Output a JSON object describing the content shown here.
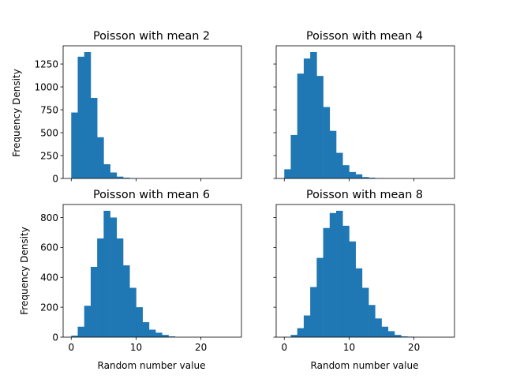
{
  "chart_data": [
    {
      "type": "bar",
      "title": "Poisson with mean 2",
      "ylabel": "Frequency Density",
      "xlabel": "",
      "bin_edges": [
        0,
        1,
        2,
        3,
        4,
        5,
        6,
        7,
        8,
        9,
        10,
        11,
        12,
        13,
        14,
        15,
        16,
        17,
        18,
        19,
        20,
        21,
        22,
        23,
        24,
        25
      ],
      "values": [
        720,
        1330,
        1380,
        880,
        450,
        155,
        65,
        20,
        8,
        3,
        0,
        0,
        0,
        0,
        0,
        0,
        0,
        0,
        0,
        0,
        0,
        0,
        0,
        0,
        0
      ],
      "xlim": [
        -1.25,
        26.25
      ],
      "ylim": [
        0,
        1449
      ],
      "xticks": [
        0,
        10,
        20
      ],
      "yticks": [
        0,
        250,
        500,
        750,
        1000,
        1250
      ],
      "show_xticklabels": false,
      "show_yticklabels": true
    },
    {
      "type": "bar",
      "title": "Poisson with mean 4",
      "ylabel": "",
      "xlabel": "",
      "bin_edges": [
        0,
        1,
        2,
        3,
        4,
        5,
        6,
        7,
        8,
        9,
        10,
        11,
        12,
        13,
        14,
        15,
        16,
        17,
        18,
        19,
        20,
        21,
        22,
        23,
        24,
        25
      ],
      "values": [
        100,
        475,
        1145,
        1310,
        1380,
        1120,
        780,
        520,
        280,
        145,
        70,
        45,
        15,
        8,
        2,
        0,
        0,
        0,
        0,
        0,
        0,
        0,
        0,
        0,
        0
      ],
      "xlim": [
        -1.25,
        26.25
      ],
      "ylim": [
        0,
        1449
      ],
      "xticks": [
        0,
        10,
        20
      ],
      "yticks": [
        0,
        250,
        500,
        750,
        1000,
        1250
      ],
      "show_xticklabels": false,
      "show_yticklabels": false
    },
    {
      "type": "bar",
      "title": "Poisson with mean 6",
      "ylabel": "Frequency Density",
      "xlabel": "Random number value",
      "bin_edges": [
        0,
        1,
        2,
        3,
        4,
        5,
        6,
        7,
        8,
        9,
        10,
        11,
        12,
        13,
        14,
        15,
        16,
        17,
        18,
        19,
        20,
        21,
        22,
        23,
        24,
        25
      ],
      "values": [
        10,
        70,
        210,
        470,
        660,
        845,
        800,
        660,
        480,
        330,
        200,
        100,
        50,
        30,
        15,
        5,
        0,
        0,
        0,
        0,
        0,
        0,
        0,
        0,
        0
      ],
      "xlim": [
        -1.25,
        26.25
      ],
      "ylim": [
        0,
        887
      ],
      "xticks": [
        0,
        10,
        20
      ],
      "yticks": [
        0,
        200,
        400,
        600,
        800
      ],
      "show_xticklabels": true,
      "show_yticklabels": true
    },
    {
      "type": "bar",
      "title": "Poisson with mean 8",
      "ylabel": "",
      "xlabel": "Random number value",
      "bin_edges": [
        0,
        1,
        2,
        3,
        4,
        5,
        6,
        7,
        8,
        9,
        10,
        11,
        12,
        13,
        14,
        15,
        16,
        17,
        18,
        19,
        20,
        21,
        22,
        23,
        24,
        25
      ],
      "values": [
        0,
        15,
        60,
        145,
        335,
        530,
        730,
        830,
        845,
        745,
        640,
        460,
        330,
        215,
        125,
        70,
        40,
        15,
        5,
        3,
        0,
        0,
        0,
        0,
        0
      ],
      "xlim": [
        -1.25,
        26.25
      ],
      "ylim": [
        0,
        887
      ],
      "xticks": [
        0,
        10,
        20
      ],
      "yticks": [
        0,
        200,
        400,
        600,
        800
      ],
      "show_xticklabels": true,
      "show_yticklabels": false
    }
  ],
  "colors": {
    "bar": "#1f77b4",
    "axes": "#000000",
    "background": "#ffffff"
  }
}
